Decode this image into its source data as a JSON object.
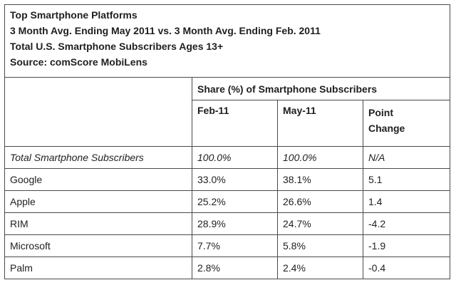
{
  "title_lines": [
    "Top Smartphone Platforms",
    "3 Month Avg. Ending May 2011 vs. 3 Month Avg. Ending Feb. 2011",
    "Total U.S. Smartphone Subscribers Ages 13+",
    "Source: comScore MobiLens"
  ],
  "group_header": "Share (%) of Smartphone Subscribers",
  "columns": {
    "feb": "Feb-11",
    "may": "May-11",
    "change_line1": "Point",
    "change_line2": "Change"
  },
  "rows": [
    {
      "label": "Total Smartphone Subscribers",
      "feb": "100.0%",
      "may": "100.0%",
      "change": "N/A"
    },
    {
      "label": "Google",
      "feb": "33.0%",
      "may": "38.1%",
      "change": "5.1"
    },
    {
      "label": "Apple",
      "feb": "25.2%",
      "may": "26.6%",
      "change": "1.4"
    },
    {
      "label": "RIM",
      "feb": "28.9%",
      "may": "24.7%",
      "change": "-4.2"
    },
    {
      "label": "Microsoft",
      "feb": "7.7%",
      "may": "5.8%",
      "change": "-1.9"
    },
    {
      "label": "Palm",
      "feb": "2.8%",
      "may": "2.4%",
      "change": "-0.4"
    }
  ]
}
